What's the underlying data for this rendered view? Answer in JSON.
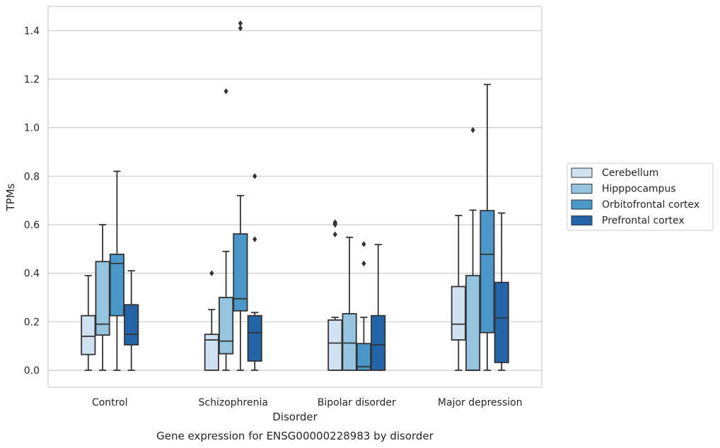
{
  "chart_data": {
    "type": "boxplot",
    "title": "",
    "caption": "Gene expression for ENSG00000228983 by disorder",
    "xlabel": "Disorder",
    "ylabel": "TPMs",
    "ylim": [
      -0.07,
      1.5
    ],
    "yticks": [
      "0.0",
      "0.2",
      "0.4",
      "0.6",
      "0.8",
      "1.0",
      "1.2",
      "1.4"
    ],
    "grid": "horizontal",
    "legend_position": "right",
    "categories": [
      "Control",
      "Schizophrenia",
      "Bipolar disorder",
      "Major depression"
    ],
    "series": [
      {
        "name": "Cerebellum",
        "color": "#d0e1f2",
        "boxes": [
          {
            "whislo": 0.0,
            "q1": 0.065,
            "med": 0.14,
            "q3": 0.225,
            "whishi": 0.39,
            "fliers": []
          },
          {
            "whislo": 0.0,
            "q1": 0.0,
            "med": 0.125,
            "q3": 0.148,
            "whishi": 0.25,
            "fliers": [
              0.4
            ]
          },
          {
            "whislo": 0.0,
            "q1": 0.0,
            "med": 0.112,
            "q3": 0.207,
            "whishi": 0.218,
            "fliers": [
              0.56,
              0.6,
              0.605,
              0.61
            ]
          },
          {
            "whislo": 0.0,
            "q1": 0.125,
            "med": 0.19,
            "q3": 0.345,
            "whishi": 0.638,
            "fliers": []
          }
        ]
      },
      {
        "name": "Hipppocampus",
        "color": "#94c4df",
        "boxes": [
          {
            "whislo": 0.0,
            "q1": 0.145,
            "med": 0.19,
            "q3": 0.448,
            "whishi": 0.6,
            "fliers": []
          },
          {
            "whislo": 0.0,
            "q1": 0.068,
            "med": 0.12,
            "q3": 0.3,
            "whishi": 0.49,
            "fliers": [
              1.15
            ]
          },
          {
            "whislo": 0.0,
            "q1": 0.0,
            "med": 0.112,
            "q3": 0.233,
            "whishi": 0.548,
            "fliers": []
          },
          {
            "whislo": 0.0,
            "q1": 0.0,
            "med": 0.0,
            "q3": 0.39,
            "whishi": 0.66,
            "fliers": [
              0.99
            ]
          }
        ]
      },
      {
        "name": "Orbitofrontal cortex",
        "color": "#4a98c9",
        "boxes": [
          {
            "whislo": 0.0,
            "q1": 0.225,
            "med": 0.44,
            "q3": 0.478,
            "whishi": 0.82,
            "fliers": []
          },
          {
            "whislo": 0.0,
            "q1": 0.245,
            "med": 0.295,
            "q3": 0.562,
            "whishi": 0.72,
            "fliers": [
              1.41,
              1.43
            ]
          },
          {
            "whislo": 0.0,
            "q1": 0.0,
            "med": 0.015,
            "q3": 0.11,
            "whishi": 0.218,
            "fliers": [
              0.44,
              0.52
            ]
          },
          {
            "whislo": 0.0,
            "q1": 0.155,
            "med": 0.478,
            "q3": 0.658,
            "whishi": 1.178,
            "fliers": []
          }
        ]
      },
      {
        "name": "Prefrontal cortex",
        "color": "#2464a8",
        "boxes": [
          {
            "whislo": 0.0,
            "q1": 0.105,
            "med": 0.148,
            "q3": 0.27,
            "whishi": 0.41,
            "fliers": []
          },
          {
            "whislo": 0.0,
            "q1": 0.038,
            "med": 0.155,
            "q3": 0.225,
            "whishi": 0.238,
            "fliers": [
              0.54,
              0.8
            ]
          },
          {
            "whislo": 0.0,
            "q1": 0.0,
            "med": 0.105,
            "q3": 0.225,
            "whishi": 0.518,
            "fliers": []
          },
          {
            "whislo": 0.0,
            "q1": 0.032,
            "med": 0.215,
            "q3": 0.362,
            "whishi": 0.648,
            "fliers": []
          }
        ]
      }
    ]
  }
}
